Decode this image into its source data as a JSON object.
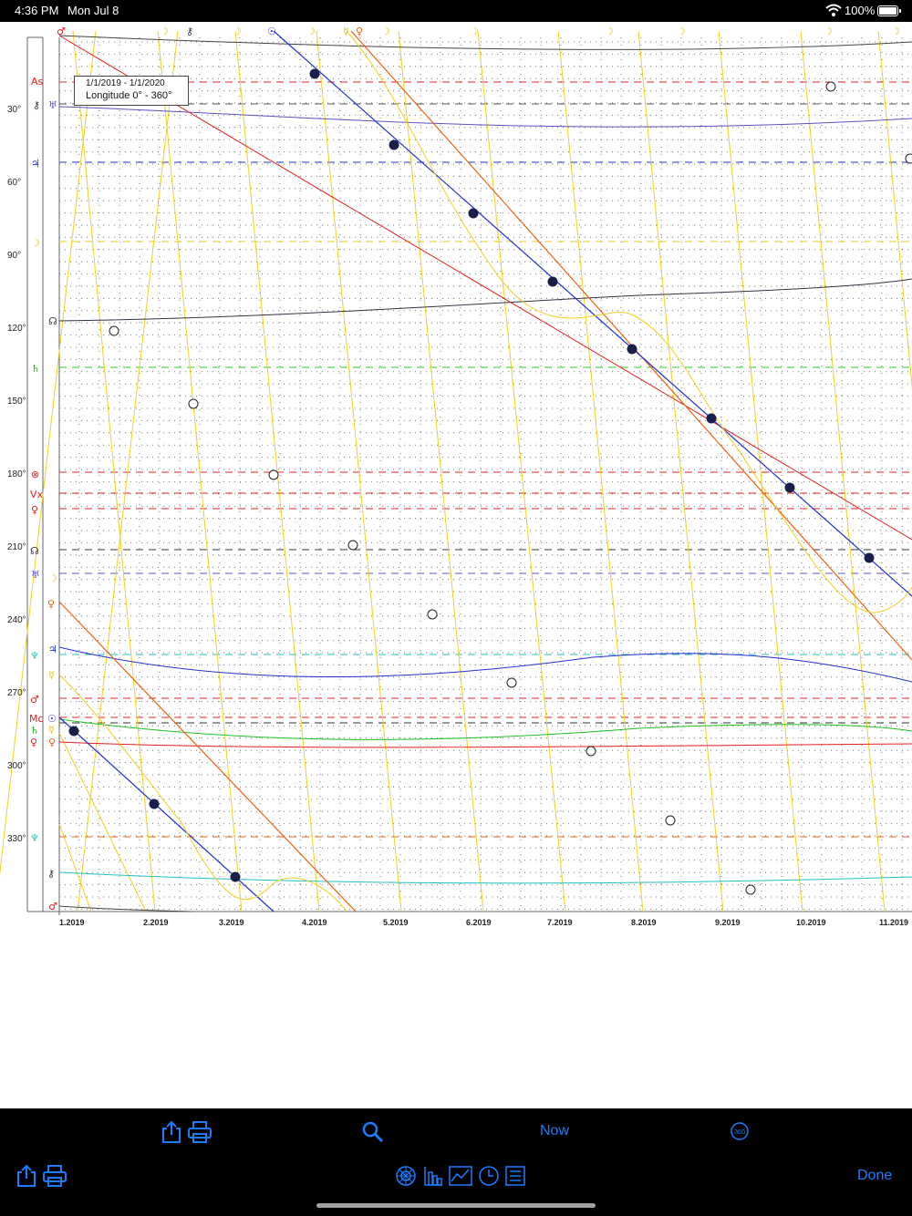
{
  "status": {
    "time": "4:36 PM",
    "date": "Mon Jul 8",
    "battery": "100%"
  },
  "chart_info": {
    "range": "1/1/2019 - 1/1/2020",
    "mode": "Longitude  0° - 360°"
  },
  "y_axis": [
    "30°",
    "60°",
    "90°",
    "120°",
    "150°",
    "180°",
    "210°",
    "240°",
    "270°",
    "300°",
    "330°"
  ],
  "x_axis": [
    "1.2019",
    "2.2019",
    "3.2019",
    "4.2019",
    "5.2019",
    "6.2019",
    "7.2019",
    "8.2019",
    "9.2019",
    "10.2019",
    "11.2019"
  ],
  "left_glyphs": [
    {
      "g": "As",
      "c": "#e52020"
    },
    {
      "g": "⚷",
      "c": "#333333"
    },
    {
      "g": "♅",
      "c": "#6050c0"
    },
    {
      "g": "♃",
      "c": "#2030d0"
    },
    {
      "g": "☽",
      "c": "#e0c020"
    },
    {
      "g": "☊",
      "c": "#333344"
    },
    {
      "g": "♄",
      "c": "#20b020"
    },
    {
      "g": "⊗",
      "c": "#e52020"
    },
    {
      "g": "Vx",
      "c": "#e52020"
    },
    {
      "g": "♀",
      "c": "#e52020"
    },
    {
      "g": "☊",
      "c": "#333344"
    },
    {
      "g": "♅",
      "c": "#6050c0"
    },
    {
      "g": "☽",
      "c": "#e0c020"
    },
    {
      "g": "♀",
      "c": "#f06010"
    },
    {
      "g": "♃",
      "c": "#2030d0"
    },
    {
      "g": "♆",
      "c": "#20c0c0"
    },
    {
      "g": "☿",
      "c": "#e0c020"
    },
    {
      "g": "♂",
      "c": "#e52020"
    },
    {
      "g": "Mc",
      "c": "#e52020"
    },
    {
      "g": "☉",
      "c": "#2030d0"
    },
    {
      "g": "♄",
      "c": "#20b020"
    },
    {
      "g": "☿",
      "c": "#e0c020"
    },
    {
      "g": "♀",
      "c": "#e52020"
    },
    {
      "g": "♀",
      "c": "#f06010"
    },
    {
      "g": "♆",
      "c": "#20c0c0"
    },
    {
      "g": "⚷",
      "c": "#333333"
    },
    {
      "g": "♂",
      "c": "#e52020"
    }
  ],
  "top_glyphs": [
    {
      "g": "♂",
      "c": "#e52020"
    },
    {
      "g": "☽",
      "c": "#e0c020"
    },
    {
      "g": "⚷",
      "c": "#333333"
    },
    {
      "g": "☽",
      "c": "#e0c020"
    },
    {
      "g": "☉",
      "c": "#2030d0"
    },
    {
      "g": "☽",
      "c": "#e0c020"
    },
    {
      "g": "☿",
      "c": "#e0c020"
    },
    {
      "g": "♀",
      "c": "#f06010"
    },
    {
      "g": "☽",
      "c": "#e0c020"
    },
    {
      "g": "☽",
      "c": "#e0c020"
    },
    {
      "g": "☽",
      "c": "#e0c020"
    },
    {
      "g": "☽",
      "c": "#e0c020"
    },
    {
      "g": "☽",
      "c": "#e0c020"
    },
    {
      "g": "☽",
      "c": "#e0c020"
    }
  ],
  "toolbar": {
    "now_label": "Now",
    "done_label": "Done"
  },
  "colors": {
    "accent": "#1a7cff",
    "toolbar_bg": "#000000"
  }
}
